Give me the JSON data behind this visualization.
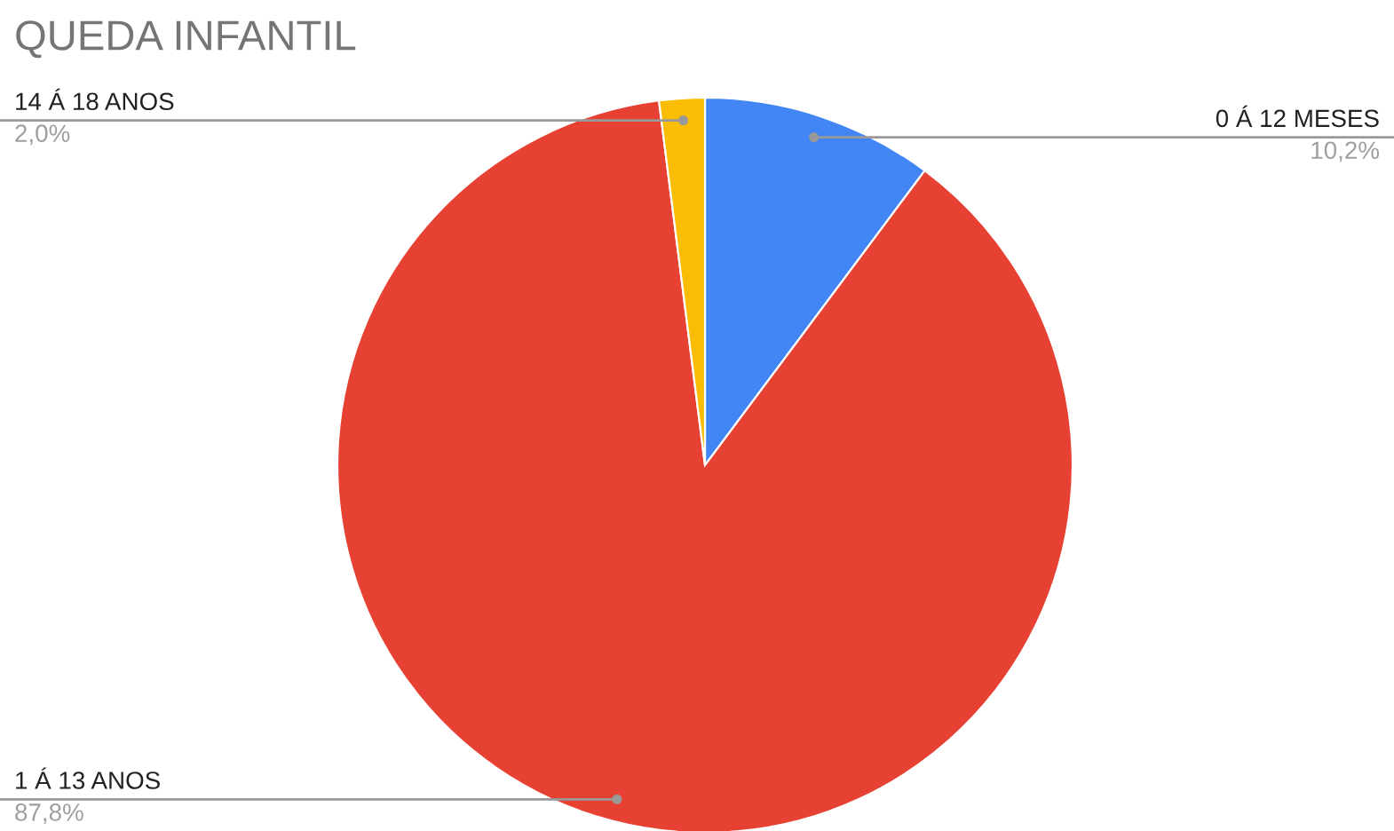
{
  "chart_data": {
    "type": "pie",
    "title": "QUEDA INFANTIL",
    "categories": [
      "0 Á 12 MESES",
      "1 Á 13 ANOS",
      "14 Á 18 ANOS"
    ],
    "values": [
      10.2,
      87.8,
      2.0
    ],
    "value_labels": [
      "10,2%",
      "87,8%",
      "2,0%"
    ],
    "colors": [
      "#4285f4",
      "#e64133",
      "#fbbc04"
    ]
  }
}
